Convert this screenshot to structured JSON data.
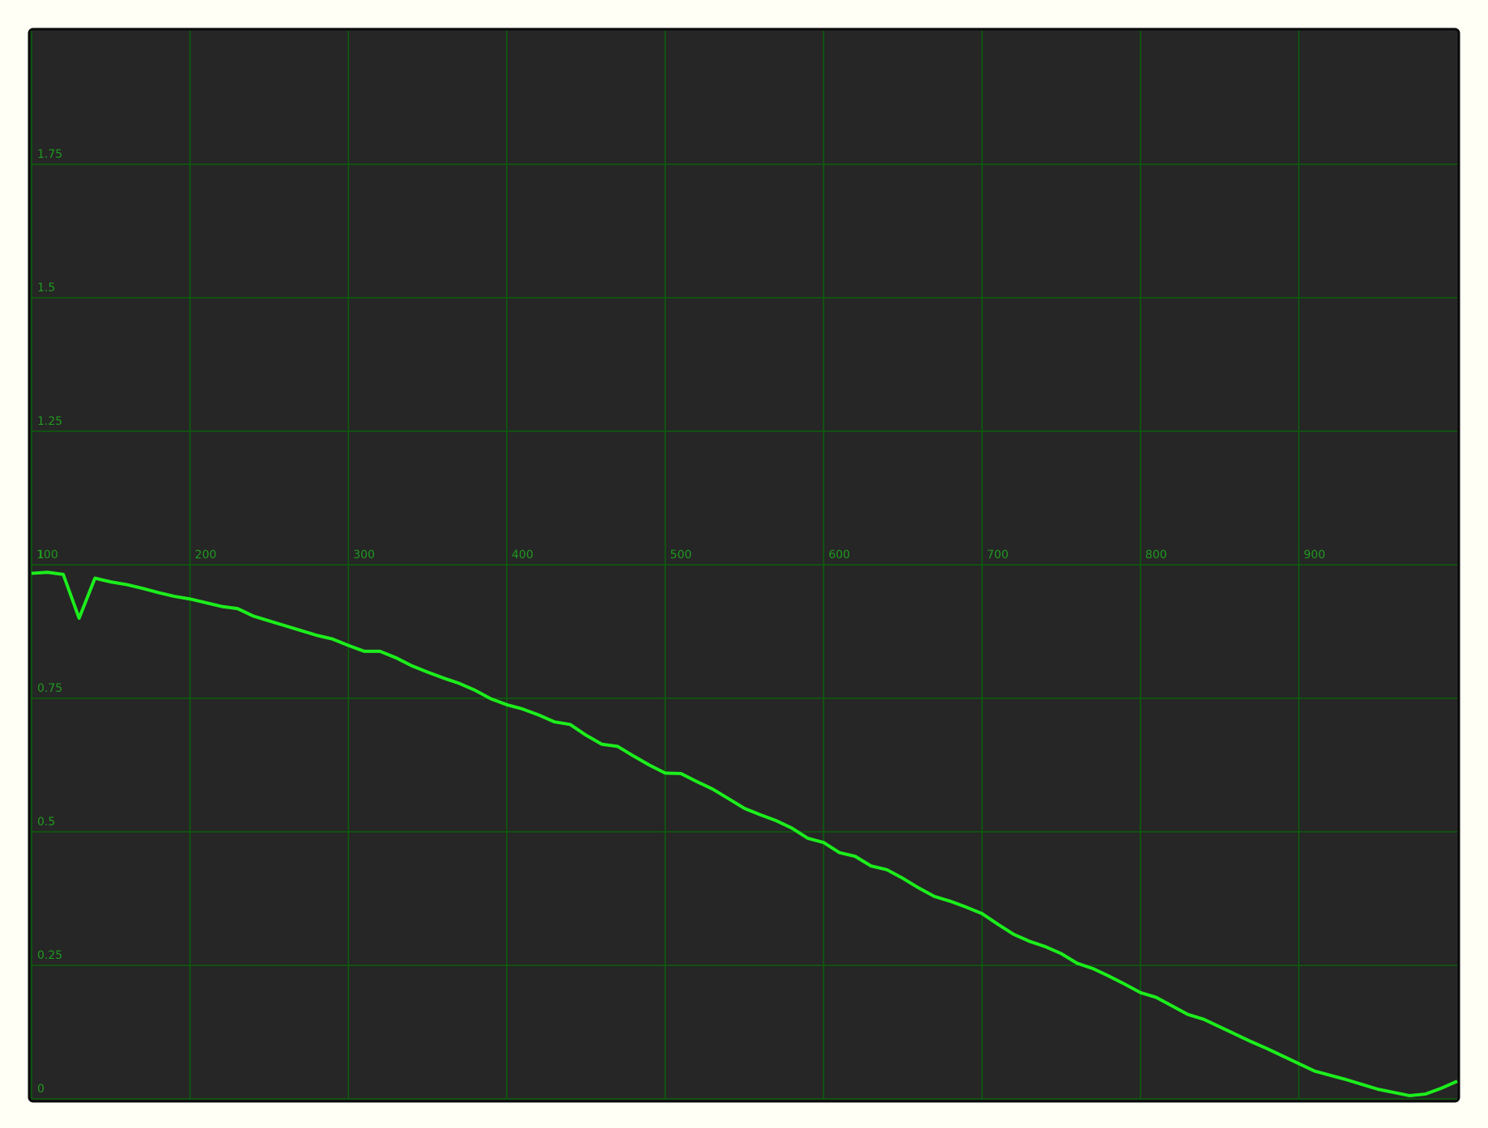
{
  "chart_data": {
    "type": "line",
    "x": [
      100,
      110,
      120,
      130,
      140,
      150,
      160,
      170,
      180,
      190,
      200,
      210,
      220,
      230,
      240,
      250,
      260,
      270,
      280,
      290,
      300,
      310,
      320,
      330,
      340,
      350,
      360,
      370,
      380,
      390,
      400,
      410,
      420,
      430,
      440,
      450,
      460,
      470,
      480,
      490,
      500,
      510,
      520,
      530,
      540,
      550,
      560,
      570,
      580,
      590,
      600,
      610,
      620,
      630,
      640,
      650,
      660,
      670,
      680,
      690,
      700,
      710,
      720,
      730,
      740,
      750,
      760,
      770,
      780,
      790,
      800,
      810,
      820,
      830,
      840,
      850,
      860,
      870,
      880,
      890,
      900,
      910,
      920,
      930,
      940,
      950,
      960,
      970,
      980,
      990,
      1000
    ],
    "series": [
      {
        "color": "#1cee1c",
        "values": [
          0.984,
          0.986,
          0.982,
          0.9,
          0.975,
          0.968,
          0.963,
          0.956,
          0.948,
          0.941,
          0.936,
          0.929,
          0.922,
          0.918,
          0.904,
          0.895,
          0.886,
          0.877,
          0.868,
          0.861,
          0.849,
          0.838,
          0.838,
          0.826,
          0.811,
          0.799,
          0.788,
          0.778,
          0.765,
          0.749,
          0.738,
          0.73,
          0.719,
          0.706,
          0.701,
          0.681,
          0.664,
          0.66,
          0.642,
          0.625,
          0.61,
          0.609,
          0.594,
          0.58,
          0.562,
          0.544,
          0.532,
          0.521,
          0.507,
          0.488,
          0.48,
          0.461,
          0.454,
          0.436,
          0.429,
          0.413,
          0.395,
          0.379,
          0.37,
          0.359,
          0.347,
          0.327,
          0.308,
          0.295,
          0.285,
          0.272,
          0.254,
          0.244,
          0.23,
          0.215,
          0.199,
          0.19,
          0.174,
          0.158,
          0.149,
          0.135,
          0.121,
          0.107,
          0.094,
          0.08,
          0.066,
          0.052,
          0.044,
          0.036,
          0.027,
          0.018,
          0.012,
          0.006,
          0.009,
          0.02,
          0.033
        ]
      }
    ],
    "xlim": [
      100,
      1000
    ],
    "ylim": [
      0,
      2
    ],
    "xticks": [
      100,
      200,
      300,
      400,
      500,
      600,
      700,
      800,
      900
    ],
    "yticks": [
      0,
      0.25,
      0.5,
      0.75,
      1,
      1.25,
      1.5,
      1.75
    ],
    "grid": true
  }
}
